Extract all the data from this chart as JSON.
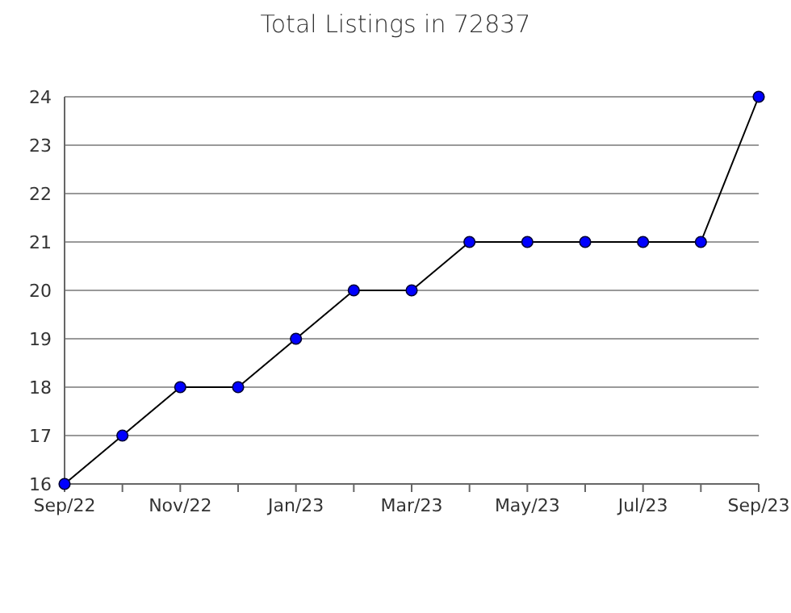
{
  "chart_data": {
    "type": "line",
    "title": "Total Listings in 72837",
    "categories": [
      "Sep/22",
      null,
      "Nov/22",
      null,
      "Jan/23",
      null,
      "Mar/23",
      null,
      "May/23",
      null,
      "Jul/23",
      null,
      "Sep/23"
    ],
    "series": [
      {
        "color": "#0000ff",
        "values": [
          16,
          17,
          18,
          18,
          19,
          20,
          20,
          21,
          21,
          21,
          21,
          21,
          24
        ]
      }
    ],
    "ylim": [
      16,
      24
    ],
    "yticks": [
      16,
      17,
      18,
      19,
      20,
      21,
      22,
      23,
      24
    ],
    "grid": "y",
    "marker": "circle",
    "line_style": "solid"
  }
}
